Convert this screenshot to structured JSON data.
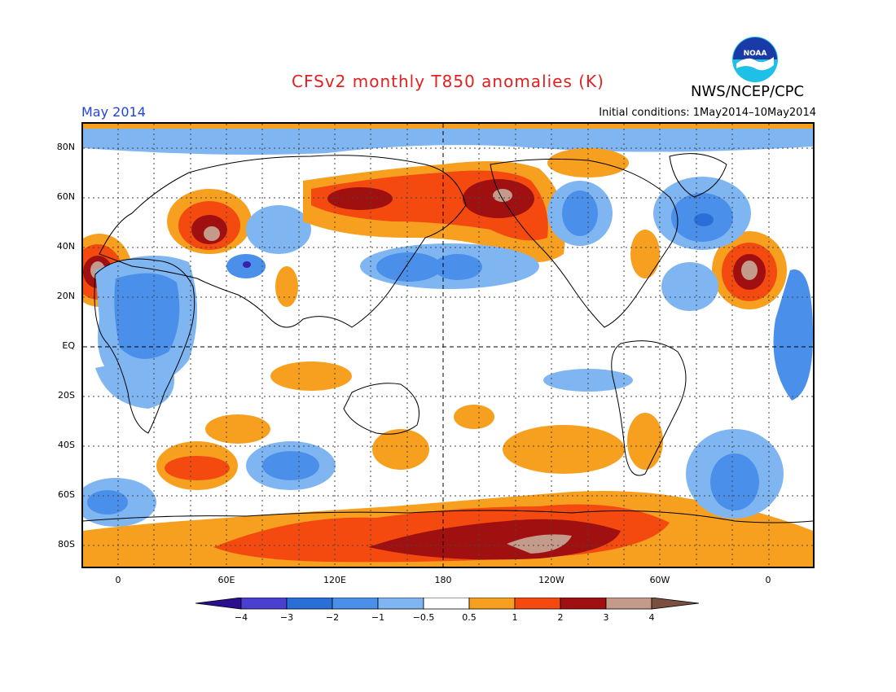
{
  "header": {
    "title": "CFSv2 monthly T850 anomalies (K)",
    "agency": "NWS/NCEP/CPC",
    "logo_text": "NOAA",
    "month": "May 2014",
    "initial_conditions": "Initial conditions: 1May2014–10May2014"
  },
  "axes": {
    "y_ticks": [
      "80N",
      "60N",
      "40N",
      "20N",
      "EQ",
      "20S",
      "40S",
      "60S",
      "80S"
    ],
    "x_ticks": [
      "0",
      "60E",
      "120E",
      "180",
      "120W",
      "60W",
      "0"
    ]
  },
  "colorbar": {
    "labels": [
      "−4",
      "−3",
      "−2",
      "−1",
      "−0.5",
      "0.5",
      "1",
      "2",
      "3",
      "4"
    ],
    "colors": [
      "#2c0f8f",
      "#4a3fcf",
      "#2a6fd8",
      "#4a90ea",
      "#7fb6f2",
      "#ffffff",
      "#f7a020",
      "#f44a10",
      "#a01010",
      "#c49a8a",
      "#7a5040"
    ]
  },
  "colors": {
    "cold_light": "#7fb6f2",
    "cold_mid": "#4a90ea",
    "cold_strong": "#2a6fd8",
    "cold_extreme": "#3a20b0",
    "warm_light": "#f7a020",
    "warm_mid": "#f44a10",
    "warm_strong": "#a01010",
    "warm_extreme": "#c49a8a"
  }
}
